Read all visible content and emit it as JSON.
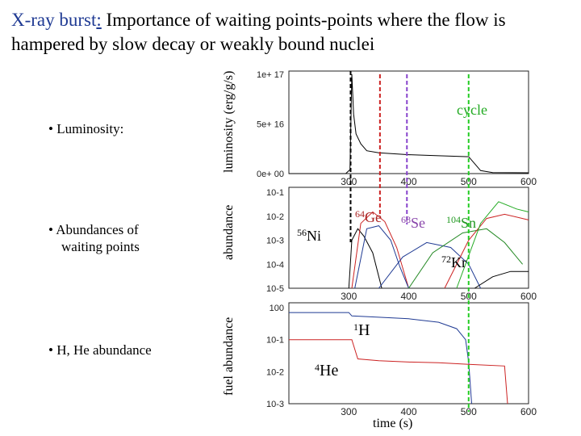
{
  "title": {
    "highlight": "X-ray burst",
    "colon": ":",
    "rest": "  Importance of waiting points-points where the flow is",
    "line2": "hampered by slow decay or weakly bound nuclei"
  },
  "bullets": {
    "luminosity": "• Luminosity:",
    "abundances_line1": "• Abundances of",
    "abundances_line2": "waiting points",
    "hhe": "• H, He abundance"
  },
  "axis_labels": {
    "luminosity": "luminosity (erg/g/s)",
    "abundance": "abundance",
    "fuel": "fuel abundance",
    "time": "time (s)"
  },
  "annotations": {
    "cycle": "cycle",
    "ni_mass": "56",
    "ni": "Ni",
    "ge_mass": "64",
    "ge": "Ge",
    "se_mass": "68",
    "se": "Se",
    "sn_mass": "104",
    "sn": "Sn",
    "kr_mass": "72",
    "kr": "Kr",
    "h_mass": "1",
    "h": "H",
    "he_mass": "4",
    "he": "He"
  },
  "colors": {
    "title_highlight": "#1f3a93",
    "cycle": "#22aa22",
    "marker_ni": "#000000",
    "marker_ge": "#cc2222",
    "marker_se": "#8844cc",
    "marker_sn": "#22cc22",
    "ge_text": "#aa2222",
    "se_text": "#8844aa",
    "sn_text": "#229922"
  },
  "chart_data": [
    {
      "type": "line",
      "panel": "luminosity",
      "xlim": [
        200,
        600
      ],
      "ylim": [
        0,
        1e+17
      ],
      "x_ticks": [
        "300",
        "400",
        "500",
        "600"
      ],
      "y_ticks": [
        "0e+ 00",
        "5e+ 16",
        "1e+ 17"
      ],
      "series": [
        {
          "x": [
            200,
            295,
            302,
            305,
            308,
            312,
            320,
            330,
            350,
            400,
            450,
            500,
            510,
            520,
            540,
            600
          ],
          "y": [
            0,
            0,
            4000000000000000.0,
            1e+17,
            6e+16,
            4e+16,
            3e+16,
            2.3e+16,
            2.1e+16,
            1.9e+16,
            1.8e+16,
            1.7e+16,
            1e+16,
            3000000000000000.0,
            1000000000000000.0,
            800000000000000.0
          ]
        }
      ]
    },
    {
      "type": "line",
      "panel": "abundance",
      "xlim": [
        200,
        600
      ],
      "log_y": true,
      "ylim": [
        1e-05,
        0.1
      ],
      "x_ticks": [
        "300",
        "400",
        "500",
        "600"
      ],
      "y_ticks": [
        "10-1",
        "10-2",
        "10-3",
        "10-4",
        "10-5"
      ],
      "series": [
        {
          "color": "#000000",
          "x": [
            300,
            305,
            315,
            325,
            340,
            355
          ],
          "y": [
            1e-05,
            0.001,
            0.003,
            0.0015,
            0.0003,
            1e-05
          ]
        },
        {
          "color": "#cc2222",
          "x": [
            305,
            320,
            340,
            360,
            380,
            400
          ],
          "y": [
            1e-05,
            0.005,
            0.015,
            0.006,
            0.0005,
            1e-05
          ]
        },
        {
          "color": "#1f3a93",
          "x": [
            310,
            330,
            350,
            370,
            385,
            400
          ],
          "y": [
            1e-05,
            0.003,
            0.004,
            0.001,
            8e-05,
            1e-05
          ]
        },
        {
          "color": "#1f3a93",
          "x": [
            350,
            390,
            430,
            470,
            500,
            520
          ],
          "y": [
            1e-05,
            0.0002,
            0.0008,
            0.0005,
            0.0001,
            1e-05
          ]
        },
        {
          "color": "#228822",
          "x": [
            400,
            440,
            490,
            530,
            560,
            590
          ],
          "y": [
            1e-05,
            0.0003,
            0.002,
            0.003,
            0.0008,
            0.0001
          ]
        },
        {
          "color": "#cc2222",
          "x": [
            460,
            500,
            530,
            560,
            590,
            600
          ],
          "y": [
            1e-05,
            0.001,
            0.008,
            0.012,
            0.008,
            0.007
          ]
        },
        {
          "color": "#22aa22",
          "x": [
            480,
            520,
            550,
            580,
            600
          ],
          "y": [
            1e-05,
            0.005,
            0.04,
            0.02,
            0.015
          ]
        },
        {
          "color": "#000000",
          "x": [
            510,
            540,
            570,
            600
          ],
          "y": [
            1e-05,
            3e-05,
            5e-05,
            5e-05
          ]
        }
      ]
    },
    {
      "type": "line",
      "panel": "fuel",
      "xlim": [
        200,
        600
      ],
      "log_y": true,
      "ylim": [
        0.001,
        1
      ],
      "x_ticks": [
        "300",
        "400",
        "500",
        "600"
      ],
      "y_ticks": [
        "10^0",
        "10-1",
        "10-2",
        "10-3"
      ],
      "xlabel": "time (s)",
      "series": [
        {
          "name": "1H",
          "color": "#1f3a93",
          "x": [
            200,
            300,
            305,
            350,
            400,
            450,
            480,
            495,
            500,
            505
          ],
          "y": [
            0.7,
            0.7,
            0.55,
            0.5,
            0.45,
            0.35,
            0.22,
            0.1,
            0.02,
            0.001
          ]
        },
        {
          "name": "4He",
          "color": "#cc2222",
          "x": [
            200,
            305,
            310,
            315,
            350,
            400,
            450,
            500,
            560,
            565
          ],
          "y": [
            0.1,
            0.1,
            0.05,
            0.025,
            0.022,
            0.02,
            0.019,
            0.017,
            0.015,
            0.001
          ]
        }
      ]
    }
  ]
}
